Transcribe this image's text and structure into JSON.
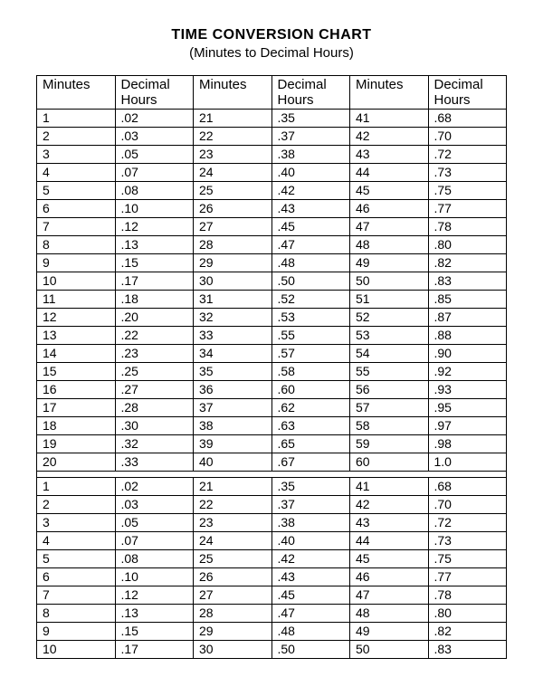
{
  "title": "TIME CONVERSION CHART",
  "subtitle": "(Minutes to Decimal Hours)",
  "headers": [
    "Minutes",
    "Decimal Hours",
    "Minutes",
    "Decimal Hours",
    "Minutes",
    "Decimal Hours"
  ],
  "block1": [
    [
      "1",
      ".02",
      "21",
      ".35",
      "41",
      ".68"
    ],
    [
      "2",
      ".03",
      "22",
      ".37",
      "42",
      ".70"
    ],
    [
      "3",
      ".05",
      "23",
      ".38",
      "43",
      ".72"
    ],
    [
      "4",
      ".07",
      "24",
      ".40",
      "44",
      ".73"
    ],
    [
      "5",
      ".08",
      "25",
      ".42",
      "45",
      ".75"
    ],
    [
      "6",
      ".10",
      "26",
      ".43",
      "46",
      ".77"
    ],
    [
      "7",
      ".12",
      "27",
      ".45",
      "47",
      ".78"
    ],
    [
      "8",
      ".13",
      "28",
      ".47",
      "48",
      ".80"
    ],
    [
      "9",
      ".15",
      "29",
      ".48",
      "49",
      ".82"
    ],
    [
      "10",
      ".17",
      "30",
      ".50",
      "50",
      ".83"
    ],
    [
      "11",
      ".18",
      "31",
      ".52",
      "51",
      ".85"
    ],
    [
      "12",
      ".20",
      "32",
      ".53",
      "52",
      ".87"
    ],
    [
      "13",
      ".22",
      "33",
      ".55",
      "53",
      ".88"
    ],
    [
      "14",
      ".23",
      "34",
      ".57",
      "54",
      ".90"
    ],
    [
      "15",
      ".25",
      "35",
      ".58",
      "55",
      ".92"
    ],
    [
      "16",
      ".27",
      "36",
      ".60",
      "56",
      ".93"
    ],
    [
      "17",
      ".28",
      "37",
      ".62",
      "57",
      ".95"
    ],
    [
      "18",
      ".30",
      "38",
      ".63",
      "58",
      ".97"
    ],
    [
      "19",
      ".32",
      "39",
      ".65",
      "59",
      ".98"
    ],
    [
      "20",
      ".33",
      "40",
      ".67",
      "60",
      "1.0"
    ]
  ],
  "block2": [
    [
      "1",
      ".02",
      "21",
      ".35",
      "41",
      ".68"
    ],
    [
      "2",
      ".03",
      "22",
      ".37",
      "42",
      ".70"
    ],
    [
      "3",
      ".05",
      "23",
      ".38",
      "43",
      ".72"
    ],
    [
      "4",
      ".07",
      "24",
      ".40",
      "44",
      ".73"
    ],
    [
      "5",
      ".08",
      "25",
      ".42",
      "45",
      ".75"
    ],
    [
      "6",
      ".10",
      "26",
      ".43",
      "46",
      ".77"
    ],
    [
      "7",
      ".12",
      "27",
      ".45",
      "47",
      ".78"
    ],
    [
      "8",
      ".13",
      "28",
      ".47",
      "48",
      ".80"
    ],
    [
      "9",
      ".15",
      "29",
      ".48",
      "49",
      ".82"
    ],
    [
      "10",
      ".17",
      "30",
      ".50",
      "50",
      ".83"
    ]
  ],
  "style": {
    "type": "table",
    "columns": 6,
    "border_color": "#000000",
    "background_color": "#ffffff",
    "title_fontsize": 16,
    "subtitle_fontsize": 15,
    "cell_fontsize": 14,
    "header_fontsize": 15,
    "font_family": "Arial"
  }
}
